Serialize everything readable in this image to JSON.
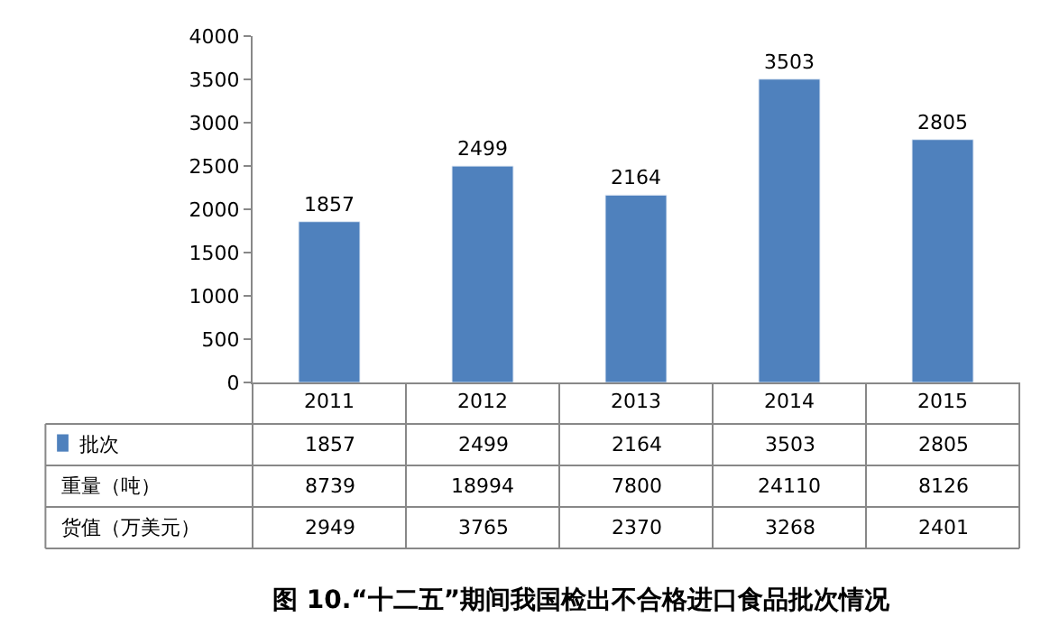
{
  "chart_data": {
    "type": "bar",
    "title": "图 10.“十二五”期间我国检出不合格进口食品批次情况",
    "categories": [
      "2011",
      "2012",
      "2013",
      "2014",
      "2015"
    ],
    "series": [
      {
        "name": "批次",
        "color": "#4f81bd",
        "values": [
          1857,
          2499,
          2164,
          3503,
          2805
        ],
        "value_labels": [
          "1857",
          "2499",
          "2164",
          "3503",
          "2805"
        ]
      }
    ],
    "annotations": [
      "1857",
      "2499",
      "2164",
      "3503",
      "2805",
      "重量（吨）",
      "8739",
      "18994",
      "7800",
      "24110",
      "8126",
      "货值（万美元）",
      "2949",
      "3765",
      "2370",
      "3268",
      "2401"
    ],
    "ylim": [
      0,
      4000
    ],
    "yticks": [
      0,
      500,
      1000,
      1500,
      2000,
      2500,
      3000,
      3500,
      4000
    ],
    "legend": "bottom"
  }
}
